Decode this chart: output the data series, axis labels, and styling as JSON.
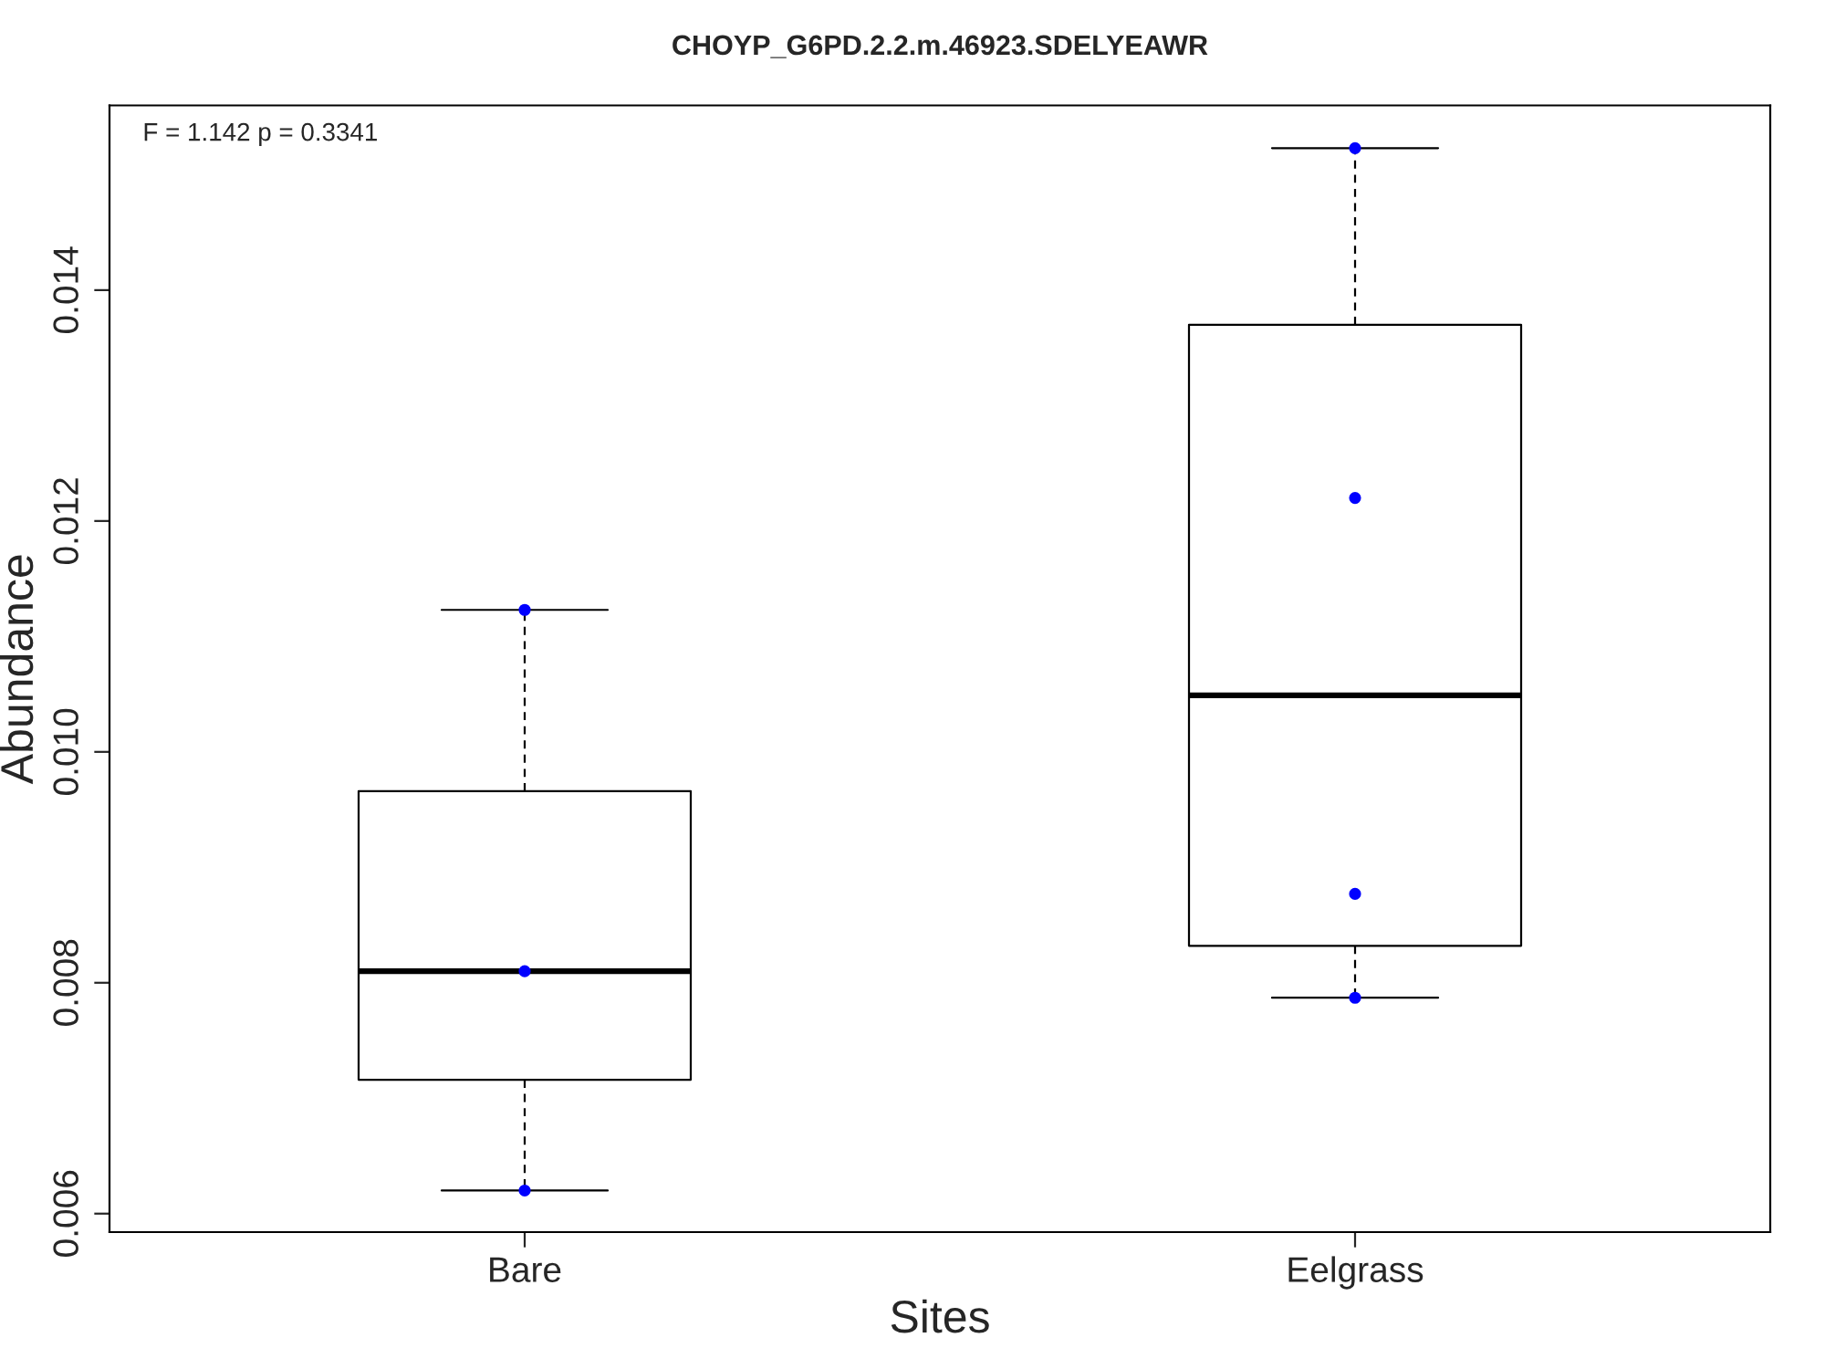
{
  "chart_data": {
    "type": "box",
    "title": "CHOYP_G6PD.2.2.m.46923.SDELYEAWR",
    "xlabel": "Sites",
    "ylabel": "Abundance",
    "categories": [
      "Bare",
      "Eelgrass"
    ],
    "boxes": [
      {
        "low": 0.0062,
        "q1": 0.00716,
        "median": 0.0081,
        "q3": 0.00966,
        "high": 0.01123
      },
      {
        "low": 0.00787,
        "q1": 0.00832,
        "median": 0.01049,
        "q3": 0.0137,
        "high": 0.01523
      }
    ],
    "series": [
      {
        "type": "scatter",
        "color": "#0000ff",
        "x": [
          "Bare",
          "Bare",
          "Bare",
          "Eelgrass",
          "Eelgrass",
          "Eelgrass",
          "Eelgrass"
        ],
        "values": [
          0.01123,
          0.0081,
          0.0062,
          0.01523,
          0.0122,
          0.00877,
          0.00787
        ]
      }
    ],
    "ylim": [
      0.00584,
      0.0156
    ],
    "yticks": [
      {
        "value": 0.006,
        "label": "0.006"
      },
      {
        "value": 0.008,
        "label": "0.008"
      },
      {
        "value": 0.01,
        "label": "0.010"
      },
      {
        "value": 0.012,
        "label": "0.012"
      },
      {
        "value": 0.014,
        "label": "0.014"
      }
    ],
    "grid": false,
    "annotations": [
      "F = 1.142 p = 0.3341"
    ]
  }
}
